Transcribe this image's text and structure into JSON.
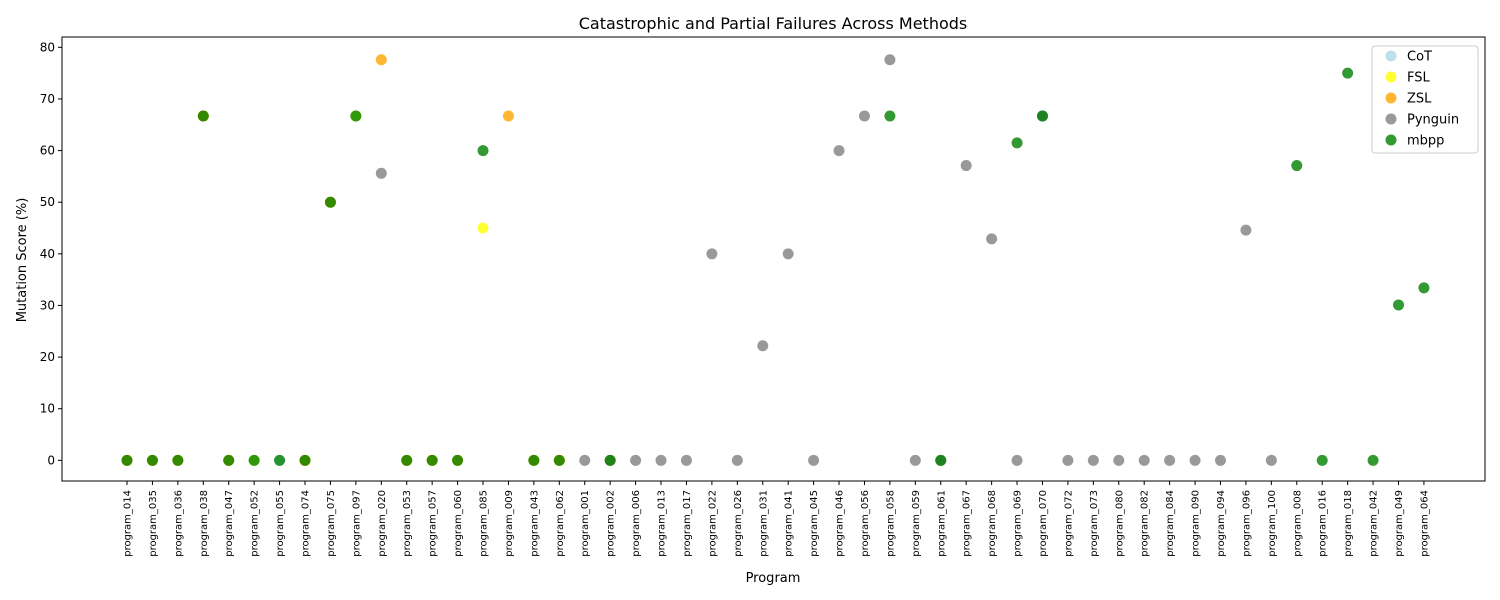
{
  "chart_data": {
    "type": "scatter",
    "title": "Catastrophic and Partial Failures Across Methods",
    "xlabel": "Program",
    "ylabel": "Mutation Score (%)",
    "ylim": [
      -4,
      82
    ],
    "yticks": [
      0,
      10,
      20,
      30,
      40,
      50,
      60,
      70,
      80
    ],
    "grid": false,
    "legend_position": "top-right",
    "categories": [
      "program_014",
      "program_035",
      "program_036",
      "program_038",
      "program_047",
      "program_052",
      "program_055",
      "program_074",
      "program_075",
      "program_097",
      "program_020",
      "program_053",
      "program_057",
      "program_060",
      "program_085",
      "program_009",
      "program_043",
      "program_062",
      "program_001",
      "program_002",
      "program_006",
      "program_013",
      "program_017",
      "program_022",
      "program_026",
      "program_031",
      "program_041",
      "program_045",
      "program_046",
      "program_056",
      "program_058",
      "program_059",
      "program_061",
      "program_067",
      "program_068",
      "program_069",
      "program_070",
      "program_072",
      "program_073",
      "program_080",
      "program_082",
      "program_084",
      "program_090",
      "program_094",
      "program_096",
      "program_100",
      "program_008",
      "program_016",
      "program_018",
      "program_042",
      "program_049",
      "program_064"
    ],
    "series": [
      {
        "name": "CoT",
        "color": "#add8e6",
        "points": [
          [
            "program_014",
            0
          ],
          [
            "program_035",
            0
          ],
          [
            "program_036",
            0
          ],
          [
            "program_038",
            66.7
          ],
          [
            "program_047",
            0
          ],
          [
            "program_052",
            0
          ],
          [
            "program_055",
            0
          ],
          [
            "program_074",
            0
          ],
          [
            "program_075",
            50
          ],
          [
            "program_097",
            66.7
          ],
          [
            "program_053",
            0
          ],
          [
            "program_057",
            0
          ],
          [
            "program_060",
            0
          ],
          [
            "program_043",
            0
          ],
          [
            "program_062",
            0
          ],
          [
            "program_002",
            0
          ],
          [
            "program_061",
            0
          ],
          [
            "program_070",
            66.7
          ]
        ]
      },
      {
        "name": "FSL",
        "color": "#ffff00",
        "points": [
          [
            "program_014",
            0
          ],
          [
            "program_035",
            0
          ],
          [
            "program_036",
            0
          ],
          [
            "program_038",
            66.7
          ],
          [
            "program_047",
            0
          ],
          [
            "program_052",
            0
          ],
          [
            "program_074",
            0
          ],
          [
            "program_075",
            50
          ],
          [
            "program_097",
            66.7
          ],
          [
            "program_053",
            0
          ],
          [
            "program_057",
            0
          ],
          [
            "program_060",
            0
          ],
          [
            "program_085",
            45
          ],
          [
            "program_043",
            0
          ],
          [
            "program_062",
            0
          ],
          [
            "program_002",
            0
          ]
        ]
      },
      {
        "name": "ZSL",
        "color": "#ffa500",
        "points": [
          [
            "program_014",
            0
          ],
          [
            "program_035",
            0
          ],
          [
            "program_036",
            0
          ],
          [
            "program_038",
            66.7
          ],
          [
            "program_047",
            0
          ],
          [
            "program_074",
            0
          ],
          [
            "program_075",
            50
          ],
          [
            "program_020",
            77.6
          ],
          [
            "program_053",
            0
          ],
          [
            "program_057",
            0
          ],
          [
            "program_060",
            0
          ],
          [
            "program_009",
            66.7
          ],
          [
            "program_043",
            0
          ],
          [
            "program_062",
            0
          ]
        ]
      },
      {
        "name": "Pynguin",
        "color": "#808080",
        "points": [
          [
            "program_020",
            55.6
          ],
          [
            "program_001",
            0
          ],
          [
            "program_002",
            0
          ],
          [
            "program_006",
            0
          ],
          [
            "program_013",
            0
          ],
          [
            "program_017",
            0
          ],
          [
            "program_022",
            40
          ],
          [
            "program_026",
            0
          ],
          [
            "program_031",
            22.2
          ],
          [
            "program_041",
            40
          ],
          [
            "program_045",
            0
          ],
          [
            "program_046",
            60
          ],
          [
            "program_056",
            66.7
          ],
          [
            "program_058",
            77.6
          ],
          [
            "program_059",
            0
          ],
          [
            "program_061",
            0
          ],
          [
            "program_067",
            57.1
          ],
          [
            "program_068",
            42.9
          ],
          [
            "program_069",
            0
          ],
          [
            "program_070",
            66.7
          ],
          [
            "program_072",
            0
          ],
          [
            "program_073",
            0
          ],
          [
            "program_080",
            0
          ],
          [
            "program_082",
            0
          ],
          [
            "program_084",
            0
          ],
          [
            "program_090",
            0
          ],
          [
            "program_094",
            0
          ],
          [
            "program_096",
            44.6
          ],
          [
            "program_100",
            0
          ]
        ]
      },
      {
        "name": "mbpp",
        "color": "#008000",
        "points": [
          [
            "program_014",
            0
          ],
          [
            "program_035",
            0
          ],
          [
            "program_036",
            0
          ],
          [
            "program_038",
            66.7
          ],
          [
            "program_047",
            0
          ],
          [
            "program_052",
            0
          ],
          [
            "program_055",
            0
          ],
          [
            "program_074",
            0
          ],
          [
            "program_075",
            50
          ],
          [
            "program_097",
            66.7
          ],
          [
            "program_053",
            0
          ],
          [
            "program_057",
            0
          ],
          [
            "program_060",
            0
          ],
          [
            "program_085",
            60
          ],
          [
            "program_043",
            0
          ],
          [
            "program_062",
            0
          ],
          [
            "program_002",
            0
          ],
          [
            "program_058",
            66.7
          ],
          [
            "program_061",
            0
          ],
          [
            "program_069",
            61.5
          ],
          [
            "program_070",
            66.7
          ],
          [
            "program_008",
            57.1
          ],
          [
            "program_016",
            0
          ],
          [
            "program_018",
            75
          ],
          [
            "program_042",
            0
          ],
          [
            "program_049",
            30.1
          ],
          [
            "program_064",
            33.4
          ]
        ]
      }
    ]
  }
}
